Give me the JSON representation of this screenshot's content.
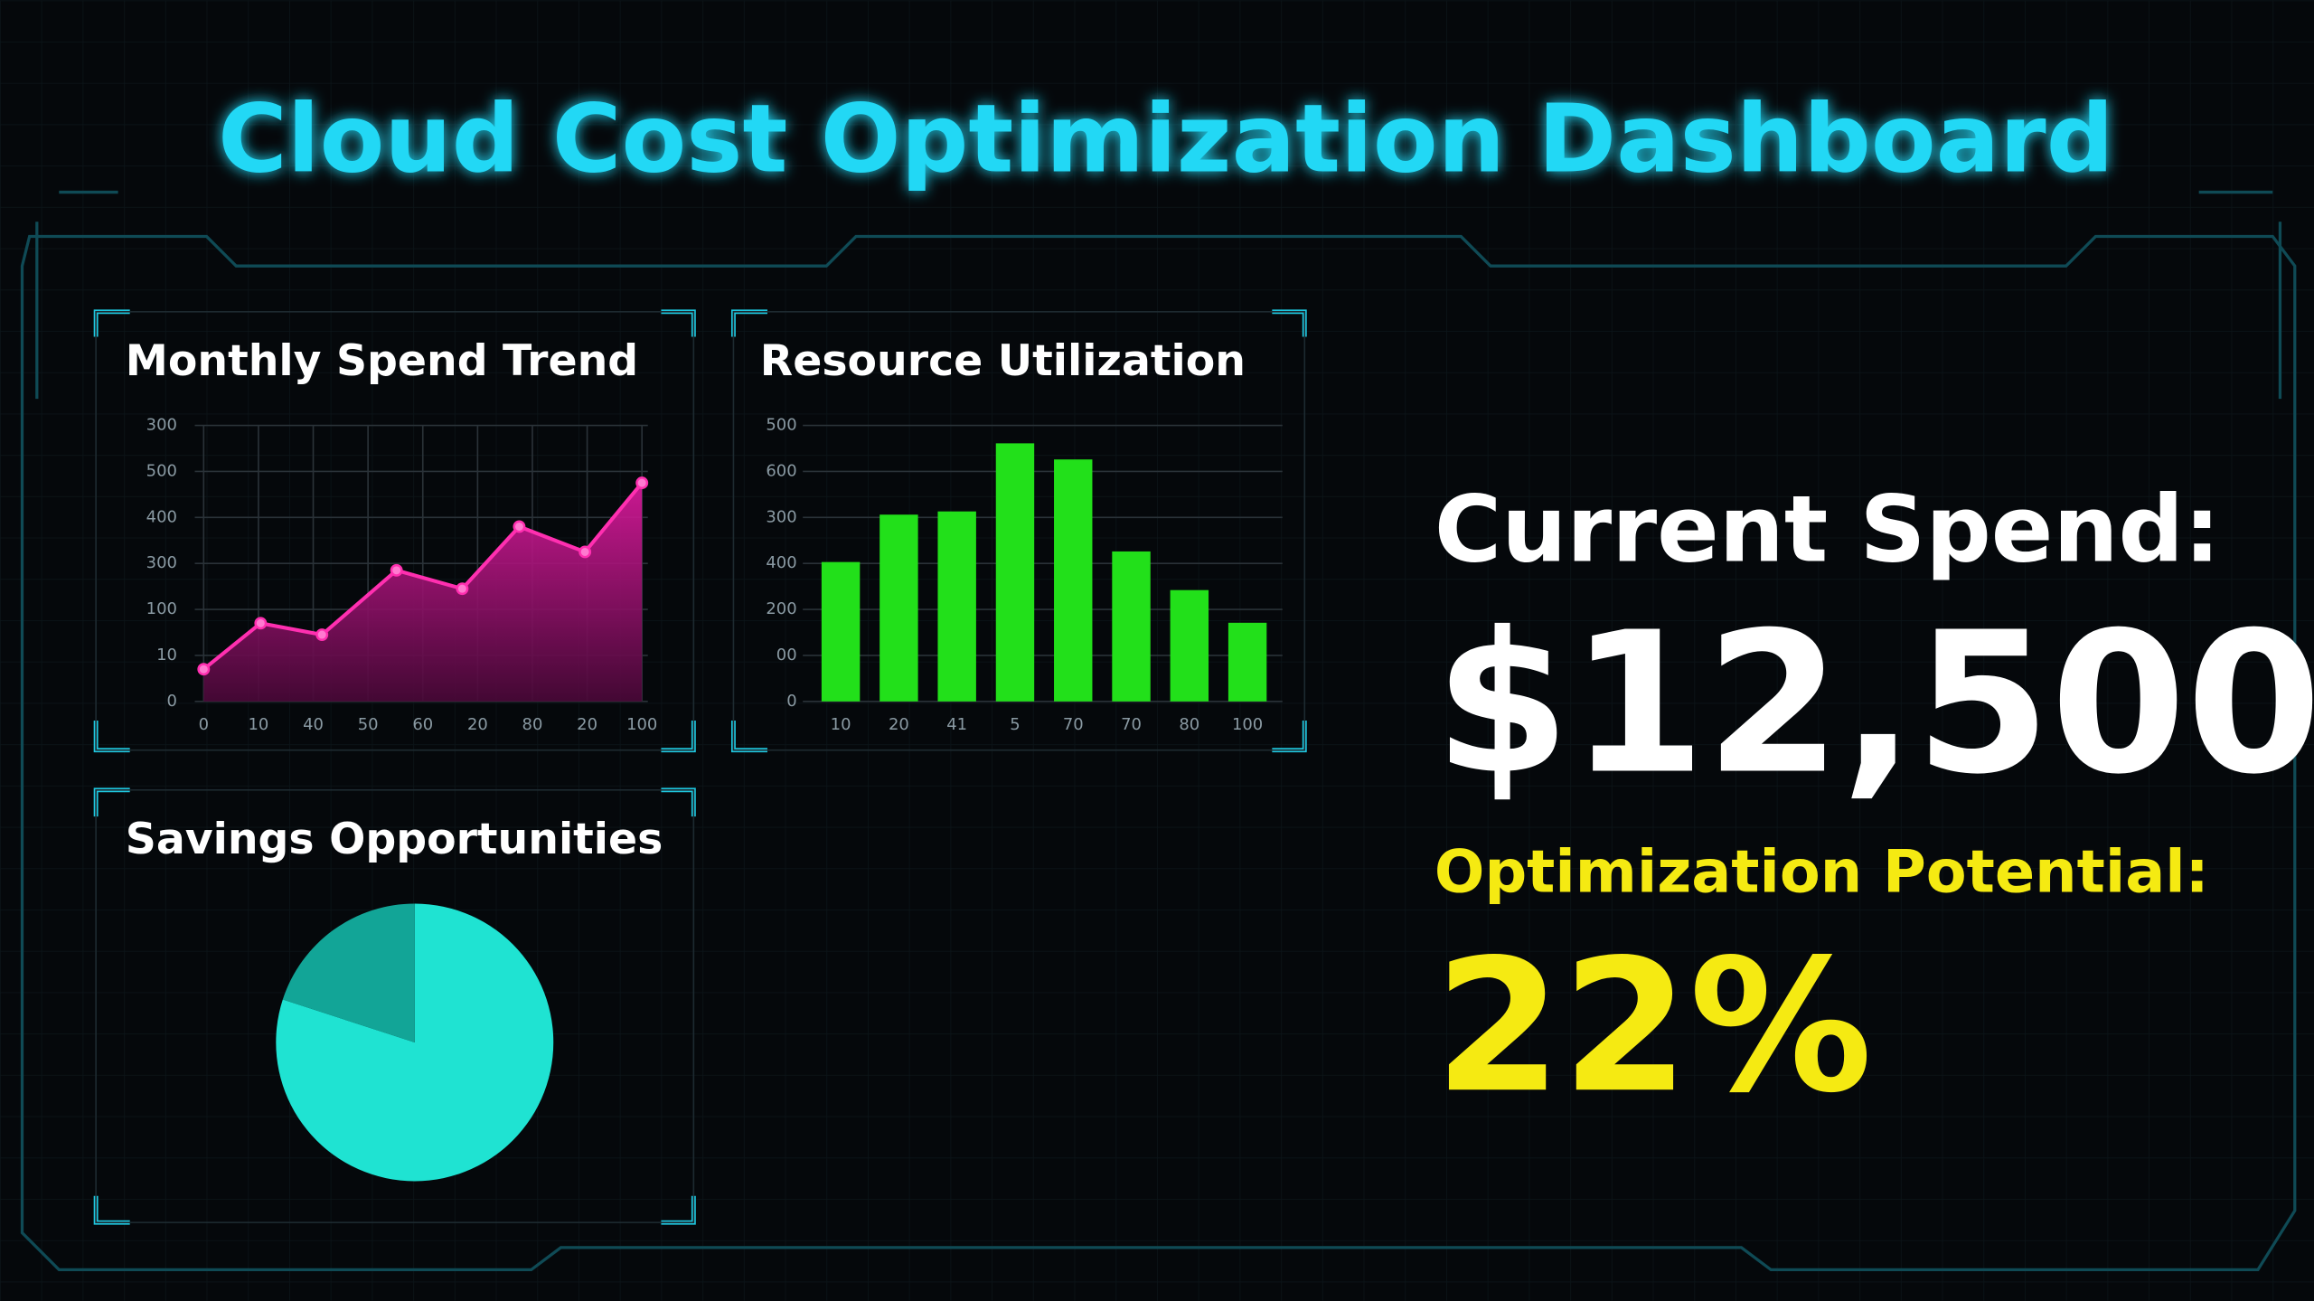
{
  "header": {
    "title": "Cloud Cost Optimization Dashboard"
  },
  "chart_data": [
    {
      "type": "line",
      "title": "Monthly Spend Trend",
      "color": "#ff2fb0",
      "x": [
        0,
        13,
        27,
        44,
        59,
        72,
        87,
        100
      ],
      "values": [
        70,
        170,
        145,
        285,
        245,
        380,
        325,
        475
      ],
      "xlim": [
        0,
        100
      ],
      "xticks": [
        0,
        {
          "value": 12.5,
          "label": "10"
        },
        {
          "value": 25,
          "label": "40"
        },
        {
          "value": 37.5,
          "label": "50"
        },
        {
          "value": 50,
          "label": "60"
        },
        {
          "value": 62.5,
          "label": "20"
        },
        {
          "value": 75,
          "label": "80"
        },
        {
          "value": 87.5,
          "label": "20"
        },
        100
      ],
      "ylim": [
        0,
        600
      ],
      "yticks": [
        0,
        {
          "value": 100,
          "label": "10"
        },
        {
          "value": 200,
          "label": "100"
        },
        300,
        400,
        500,
        {
          "value": 600,
          "label": "300"
        }
      ],
      "grid": true
    },
    {
      "type": "bar",
      "title": "Resource Utilization",
      "color": "#22e01a",
      "categories": [
        "10",
        "20",
        "41",
        "5",
        "70",
        "70",
        "80",
        "100"
      ],
      "values": [
        303,
        406,
        413,
        561,
        526,
        326,
        242,
        171
      ],
      "ylim": [
        0,
        600
      ],
      "yticks": [
        0,
        {
          "value": 100,
          "label": "00"
        },
        200,
        {
          "value": 300,
          "label": "400"
        },
        {
          "value": 400,
          "label": "300"
        },
        {
          "value": 500,
          "label": "600"
        },
        {
          "value": 600,
          "label": "500"
        }
      ],
      "grid": true
    },
    {
      "type": "pie",
      "title": "Savings Opportunities",
      "values": [
        80,
        20
      ],
      "colors": [
        "#1fe3d2",
        "#12a597"
      ]
    }
  ],
  "kpis": {
    "current_spend_label": "Current Spend:",
    "current_spend": "$12,500",
    "potential_label": "Optimization Potential:",
    "potential": "22%"
  }
}
